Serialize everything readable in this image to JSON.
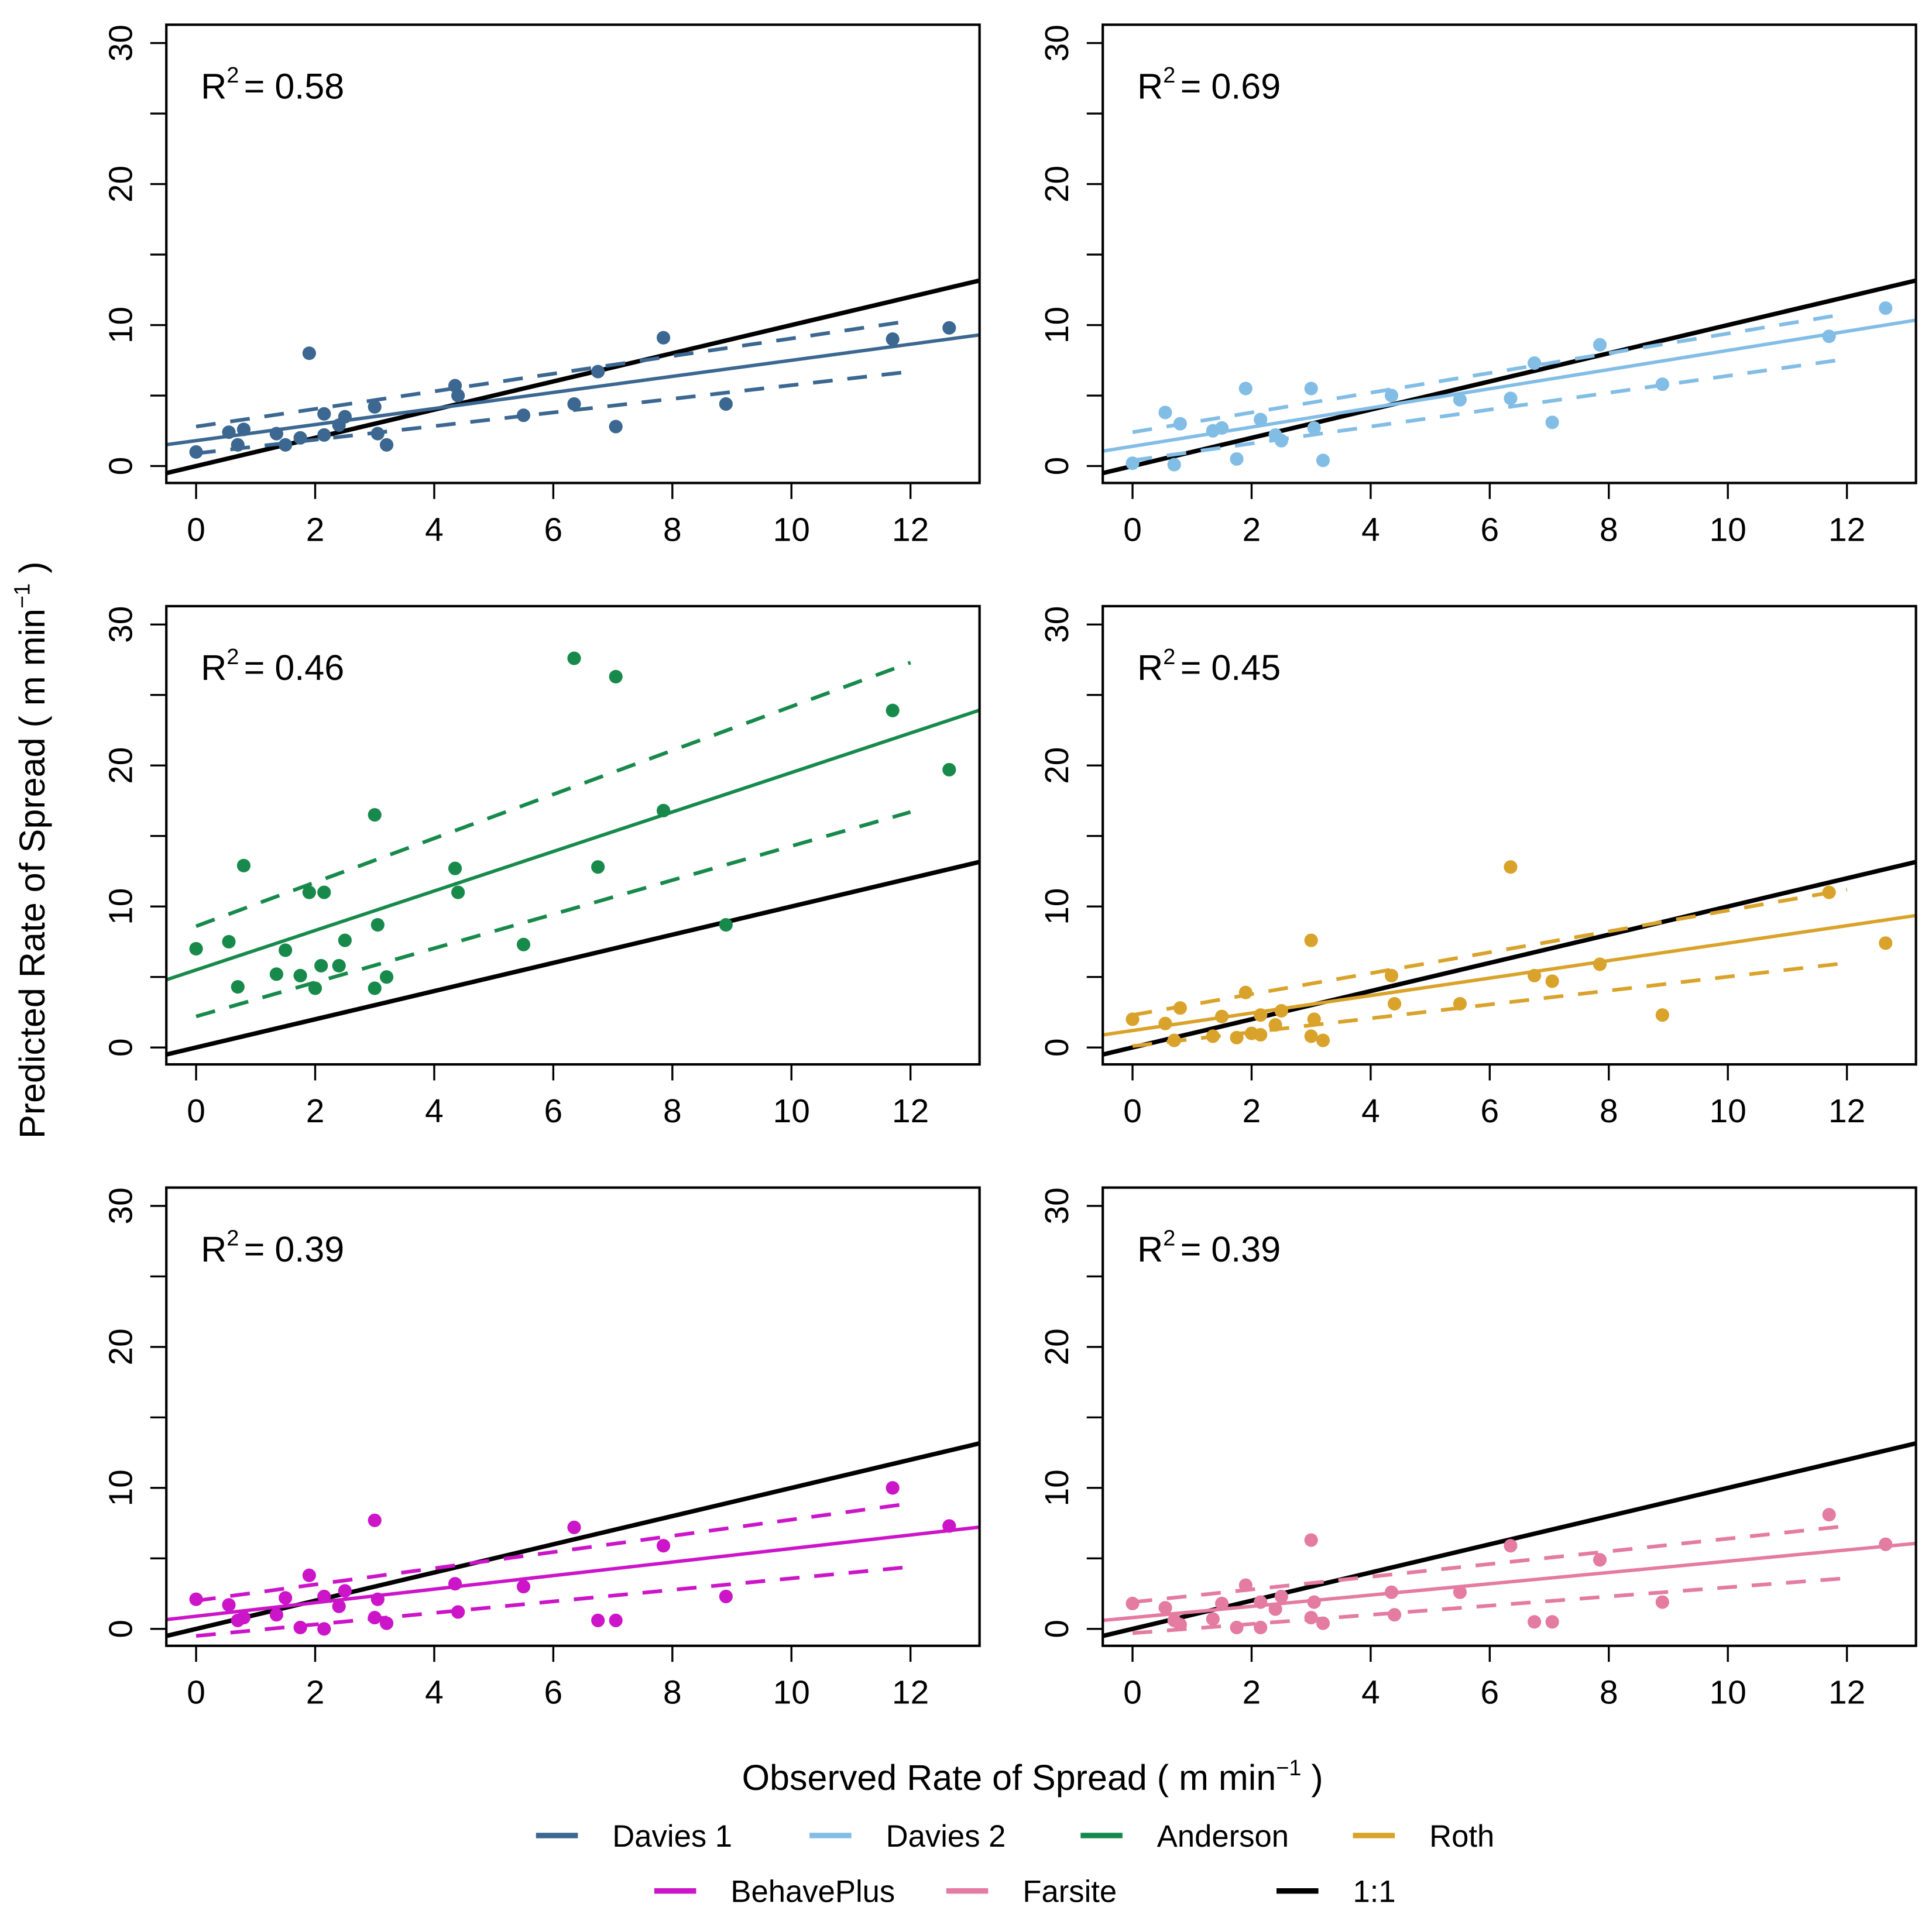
{
  "chart_data": [
    {
      "type": "scatter",
      "name": "Davies 1",
      "color": "#3b6791",
      "r2_label": "R",
      "r2_sup": "2",
      "r2_value": "= 0.58",
      "fit": {
        "intercept": 1.8,
        "slope": 0.57
      },
      "ci_upper": [
        [
          0,
          2.8
        ],
        [
          12,
          10.3
        ]
      ],
      "ci_lower": [
        [
          0,
          0.9
        ],
        [
          12,
          6.7
        ]
      ],
      "points": [
        [
          0,
          1.0
        ],
        [
          0.55,
          2.4
        ],
        [
          0.7,
          1.5
        ],
        [
          0.8,
          2.6
        ],
        [
          1.35,
          2.3
        ],
        [
          1.5,
          1.5
        ],
        [
          1.75,
          2.0
        ],
        [
          1.9,
          8.0
        ],
        [
          2.15,
          3.7
        ],
        [
          2.15,
          2.2
        ],
        [
          2.4,
          2.9
        ],
        [
          2.5,
          3.5
        ],
        [
          3.0,
          4.2
        ],
        [
          3.05,
          2.3
        ],
        [
          3.2,
          1.5
        ],
        [
          4.35,
          5.7
        ],
        [
          4.4,
          5.0
        ],
        [
          5.5,
          3.6
        ],
        [
          6.35,
          4.4
        ],
        [
          6.75,
          6.7
        ],
        [
          7.05,
          2.8
        ],
        [
          7.85,
          9.1
        ],
        [
          8.9,
          4.4
        ],
        [
          11.7,
          9.0
        ],
        [
          12.65,
          9.8
        ]
      ]
    },
    {
      "type": "scatter",
      "name": "Davies 2",
      "color": "#82bde6",
      "r2_label": "R",
      "r2_sup": "2",
      "r2_value": "= 0.69",
      "fit": {
        "intercept": 1.4,
        "slope": 0.68
      },
      "ci_upper": [
        [
          0,
          2.4
        ],
        [
          12,
          10.8
        ]
      ],
      "ci_lower": [
        [
          0,
          0.4
        ],
        [
          12,
          7.6
        ]
      ],
      "points": [
        [
          0,
          0.2
        ],
        [
          0.55,
          3.8
        ],
        [
          0.7,
          0.1
        ],
        [
          0.8,
          3.0
        ],
        [
          1.35,
          2.5
        ],
        [
          1.5,
          2.7
        ],
        [
          1.75,
          0.5
        ],
        [
          1.9,
          5.5
        ],
        [
          2.15,
          3.3
        ],
        [
          2.4,
          2.2
        ],
        [
          2.5,
          1.8
        ],
        [
          3.0,
          5.5
        ],
        [
          3.05,
          2.7
        ],
        [
          3.2,
          0.4
        ],
        [
          4.35,
          5.0
        ],
        [
          5.5,
          4.7
        ],
        [
          6.35,
          4.8
        ],
        [
          6.75,
          7.3
        ],
        [
          7.05,
          3.1
        ],
        [
          7.85,
          8.6
        ],
        [
          8.9,
          5.8
        ],
        [
          11.7,
          9.2
        ],
        [
          12.65,
          11.2
        ]
      ]
    },
    {
      "type": "scatter",
      "name": "Anderson",
      "color": "#178a4b",
      "r2_label": "R",
      "r2_sup": "2",
      "r2_value": "= 0.46",
      "fit": {
        "intercept": 5.5,
        "slope": 1.4
      },
      "ci_upper": [
        [
          0,
          8.6
        ],
        [
          12,
          27.3
        ]
      ],
      "ci_lower": [
        [
          0,
          2.2
        ],
        [
          12,
          16.7
        ]
      ],
      "points": [
        [
          0,
          7.0
        ],
        [
          0.55,
          7.5
        ],
        [
          0.7,
          4.3
        ],
        [
          0.8,
          12.9
        ],
        [
          1.35,
          5.2
        ],
        [
          1.5,
          6.9
        ],
        [
          1.75,
          5.1
        ],
        [
          1.9,
          11.0
        ],
        [
          2.0,
          4.2
        ],
        [
          2.1,
          5.8
        ],
        [
          2.15,
          11.0
        ],
        [
          2.4,
          5.8
        ],
        [
          2.5,
          7.6
        ],
        [
          3.0,
          16.5
        ],
        [
          3.05,
          8.7
        ],
        [
          3.0,
          4.2
        ],
        [
          3.2,
          5.0
        ],
        [
          4.35,
          12.7
        ],
        [
          4.4,
          11.0
        ],
        [
          5.5,
          7.3
        ],
        [
          6.35,
          27.6
        ],
        [
          6.75,
          12.8
        ],
        [
          7.05,
          26.3
        ],
        [
          7.85,
          16.8
        ],
        [
          8.9,
          8.7
        ],
        [
          11.7,
          23.9
        ],
        [
          12.65,
          19.7
        ]
      ]
    },
    {
      "type": "scatter",
      "name": "Roth",
      "color": "#d9a32b",
      "r2_label": "R",
      "r2_sup": "2",
      "r2_value": "= 0.45",
      "fit": {
        "intercept": 1.2,
        "slope": 0.62
      },
      "ci_upper": [
        [
          0,
          2.3
        ],
        [
          12,
          11.2
        ]
      ],
      "ci_lower": [
        [
          0,
          0.1
        ],
        [
          12,
          6.0
        ]
      ],
      "points": [
        [
          0,
          2.0
        ],
        [
          0.55,
          1.7
        ],
        [
          0.7,
          0.5
        ],
        [
          0.8,
          2.8
        ],
        [
          1.35,
          0.8
        ],
        [
          1.5,
          2.2
        ],
        [
          1.75,
          0.7
        ],
        [
          1.9,
          3.9
        ],
        [
          2.0,
          1.0
        ],
        [
          2.15,
          0.9
        ],
        [
          2.15,
          2.3
        ],
        [
          2.4,
          1.6
        ],
        [
          2.5,
          2.6
        ],
        [
          3.0,
          7.6
        ],
        [
          3.05,
          2.0
        ],
        [
          3.0,
          0.8
        ],
        [
          3.2,
          0.5
        ],
        [
          4.35,
          5.1
        ],
        [
          4.4,
          3.1
        ],
        [
          5.5,
          3.1
        ],
        [
          6.35,
          12.8
        ],
        [
          6.75,
          5.1
        ],
        [
          7.05,
          4.7
        ],
        [
          7.85,
          5.9
        ],
        [
          8.9,
          2.3
        ],
        [
          11.7,
          11.0
        ],
        [
          12.65,
          7.4
        ]
      ]
    },
    {
      "type": "scatter",
      "name": "BehavePlus",
      "color": "#cc14c9",
      "r2_label": "R",
      "r2_sup": "2",
      "r2_value": "= 0.39",
      "fit": {
        "intercept": 0.9,
        "slope": 0.48
      },
      "ci_upper": [
        [
          0,
          2.0
        ],
        [
          12,
          8.9
        ]
      ],
      "ci_lower": [
        [
          0,
          -0.5
        ],
        [
          12,
          4.4
        ]
      ],
      "points": [
        [
          0,
          2.1
        ],
        [
          0.55,
          1.7
        ],
        [
          0.7,
          0.6
        ],
        [
          0.8,
          0.8
        ],
        [
          1.35,
          1.0
        ],
        [
          1.5,
          2.2
        ],
        [
          1.75,
          0.1
        ],
        [
          1.9,
          3.8
        ],
        [
          2.15,
          2.3
        ],
        [
          2.15,
          0.0
        ],
        [
          2.4,
          1.6
        ],
        [
          2.5,
          2.7
        ],
        [
          3.0,
          7.7
        ],
        [
          3.05,
          2.1
        ],
        [
          3.0,
          0.8
        ],
        [
          3.2,
          0.4
        ],
        [
          4.35,
          3.2
        ],
        [
          4.4,
          1.2
        ],
        [
          5.5,
          3.0
        ],
        [
          6.35,
          7.2
        ],
        [
          6.75,
          0.6
        ],
        [
          7.05,
          0.6
        ],
        [
          7.85,
          5.9
        ],
        [
          8.9,
          2.3
        ],
        [
          11.7,
          10.0
        ],
        [
          12.65,
          7.3
        ]
      ]
    },
    {
      "type": "scatter",
      "name": "Farsite",
      "color": "#e47ba0",
      "r2_label": "R",
      "r2_sup": "2",
      "r2_value": "= 0.39",
      "fit": {
        "intercept": 0.8,
        "slope": 0.4
      },
      "ci_upper": [
        [
          0,
          1.9
        ],
        [
          12,
          7.3
        ]
      ],
      "ci_lower": [
        [
          0,
          -0.3
        ],
        [
          12,
          3.6
        ]
      ],
      "points": [
        [
          0,
          1.8
        ],
        [
          0.55,
          1.5
        ],
        [
          0.7,
          0.6
        ],
        [
          0.8,
          0.3
        ],
        [
          1.35,
          0.7
        ],
        [
          1.5,
          1.8
        ],
        [
          1.75,
          0.1
        ],
        [
          1.9,
          3.1
        ],
        [
          2.15,
          0.1
        ],
        [
          2.15,
          1.9
        ],
        [
          2.4,
          1.4
        ],
        [
          2.5,
          2.3
        ],
        [
          3.0,
          6.3
        ],
        [
          3.05,
          1.9
        ],
        [
          3.0,
          0.8
        ],
        [
          3.2,
          0.4
        ],
        [
          4.35,
          2.6
        ],
        [
          4.4,
          1.0
        ],
        [
          5.5,
          2.6
        ],
        [
          6.35,
          5.9
        ],
        [
          6.75,
          0.5
        ],
        [
          7.05,
          0.5
        ],
        [
          7.85,
          4.9
        ],
        [
          8.9,
          1.9
        ],
        [
          11.7,
          8.1
        ],
        [
          12.65,
          6.0
        ]
      ]
    }
  ],
  "axes": {
    "xlim": [
      -0.5,
      13.16
    ],
    "ylim": [
      -1.2,
      31.3
    ],
    "x_ticks": [
      0,
      2,
      4,
      6,
      8,
      10,
      12
    ],
    "x_tick_labels": [
      "0",
      "2",
      "4",
      "6",
      "8",
      "10",
      "12"
    ],
    "y_ticks": [
      0,
      5,
      10,
      15,
      20,
      25,
      30
    ],
    "y_tick_labels": [
      "0",
      "10",
      "20",
      "30"
    ],
    "y_label_values": [
      0,
      10,
      20,
      30
    ],
    "one_to_one_color": "#000000"
  },
  "xlabel": "Observed Rate of Spread ( m min",
  "xlabel_sup": "−1",
  "xlabel_end": " )",
  "ylabel": "Predicted Rate of Spread ( m min",
  "ylabel_sup": "−1",
  "ylabel_end": " )",
  "legend": {
    "placement": "bottom",
    "items": [
      {
        "label": "Davies 1",
        "color": "#3b6791"
      },
      {
        "label": "Davies 2",
        "color": "#82bde6"
      },
      {
        "label": "Anderson",
        "color": "#178a4b"
      },
      {
        "label": "Roth",
        "color": "#d9a32b"
      },
      {
        "label": "BehavePlus",
        "color": "#cc14c9"
      },
      {
        "label": "Farsite",
        "color": "#e47ba0"
      },
      {
        "label": "1:1",
        "color": "#000000"
      }
    ]
  }
}
